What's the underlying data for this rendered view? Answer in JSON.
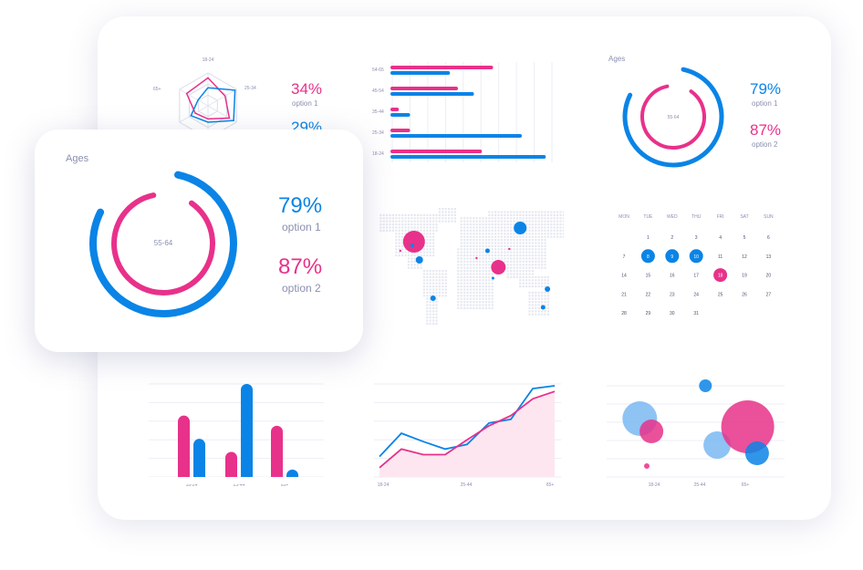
{
  "colors": {
    "blue": "#0a84e6",
    "pink": "#e8318a",
    "lightblue": "#7ab8f2",
    "grid": "#eceef5",
    "text": "#8a8fb0"
  },
  "floating_card": {
    "title": "Ages",
    "center_label": "55-64",
    "stat1": {
      "value": "79%",
      "label": "option 1"
    },
    "stat2": {
      "value": "87%",
      "label": "option 2"
    }
  },
  "chart_data": [
    {
      "type": "radar",
      "axes": [
        "18-24",
        "25-34",
        "65+"
      ],
      "stats": [
        {
          "value": "34%",
          "label": "option 1"
        },
        {
          "value": "29%",
          "label": ""
        }
      ]
    },
    {
      "type": "bar",
      "orientation": "horizontal",
      "categories": [
        "54-65",
        "45-54",
        "35-44",
        "25-34",
        "18-24"
      ],
      "series": [
        {
          "values": [
            62,
            40,
            3,
            10,
            55
          ]
        },
        {
          "values": [
            35,
            50,
            10,
            80,
            95
          ]
        }
      ],
      "ylim": [
        0,
        100
      ]
    },
    {
      "type": "donut",
      "title": "Ages",
      "center_label": "55-64",
      "stats": [
        {
          "value": "79%",
          "label": "option 1"
        },
        {
          "value": "87%",
          "label": "option 2"
        }
      ]
    },
    {
      "type": "map_bubbles",
      "points": [
        {
          "lon": -95,
          "lat": 40,
          "size": 12,
          "color": "pink"
        },
        {
          "lon": -98,
          "lat": 36,
          "size": 2,
          "color": "blue"
        },
        {
          "lon": -85,
          "lat": 20,
          "size": 4,
          "color": "blue"
        },
        {
          "lon": -60,
          "lat": -22,
          "size": 3,
          "color": "blue"
        },
        {
          "lon": -120,
          "lat": 30,
          "size": 1.2,
          "color": "pink"
        },
        {
          "lon": 100,
          "lat": 55,
          "size": 7,
          "color": "blue"
        },
        {
          "lon": 40,
          "lat": 30,
          "size": 2.5,
          "color": "blue"
        },
        {
          "lon": 60,
          "lat": 12,
          "size": 8,
          "color": "pink"
        },
        {
          "lon": 80,
          "lat": 32,
          "size": 1.2,
          "color": "pink"
        },
        {
          "lon": 20,
          "lat": 22,
          "size": 1.2,
          "color": "pink"
        },
        {
          "lon": 50,
          "lat": 0,
          "size": 1.5,
          "color": "blue"
        },
        {
          "lon": 150,
          "lat": -12,
          "size": 3,
          "color": "blue"
        },
        {
          "lon": 142,
          "lat": -32,
          "size": 2.5,
          "color": "blue"
        }
      ]
    },
    {
      "type": "calendar",
      "weekdays": [
        "MON",
        "TUE",
        "WED",
        "THU",
        "FRI",
        "SAT",
        "SUN"
      ],
      "rows": [
        [
          "",
          "1",
          "2",
          "3",
          "4",
          "5",
          "6"
        ],
        [
          "7",
          "8",
          "9",
          "10",
          "11",
          "12",
          "13"
        ],
        [
          "14",
          "15",
          "16",
          "17",
          "18",
          "19",
          "20"
        ],
        [
          "21",
          "22",
          "23",
          "24",
          "25",
          "26",
          "27"
        ],
        [
          "28",
          "29",
          "30",
          "31",
          "",
          "",
          ""
        ]
      ],
      "highlighted_blue": [
        "8",
        "9",
        "10"
      ],
      "highlighted_pink": [
        "18"
      ]
    },
    {
      "type": "bar",
      "categories": [
        "18-24",
        "25-44",
        "65+"
      ],
      "series": [
        {
          "values": [
            66,
            27,
            55
          ]
        },
        {
          "values": [
            41,
            100,
            8
          ]
        }
      ],
      "ylim": [
        0,
        100
      ]
    },
    {
      "type": "line",
      "categories": [
        "18-24",
        "25-44",
        "65+"
      ],
      "x": [
        0,
        1,
        2,
        3,
        4,
        5,
        6,
        7,
        8
      ],
      "series": [
        {
          "values": [
            22,
            47,
            38,
            30,
            35,
            58,
            62,
            95,
            98
          ]
        },
        {
          "values": [
            10,
            30,
            24,
            24,
            40,
            55,
            66,
            84,
            92
          ]
        }
      ],
      "ylim": [
        0,
        100
      ]
    },
    {
      "type": "bubble",
      "categories": [
        "18-24",
        "25-44",
        "65+"
      ],
      "points": [
        {
          "x": 1.1,
          "y": 64,
          "r": 19,
          "color": "lightblue"
        },
        {
          "x": 1.6,
          "y": 50,
          "r": 13,
          "color": "pink"
        },
        {
          "x": 3.9,
          "y": 100,
          "r": 7,
          "color": "blue"
        },
        {
          "x": 4.4,
          "y": 35,
          "r": 15,
          "color": "lightblue"
        },
        {
          "x": 5.7,
          "y": 55,
          "r": 29,
          "color": "pink"
        },
        {
          "x": 6.1,
          "y": 26,
          "r": 13,
          "color": "blue"
        },
        {
          "x": 1.4,
          "y": 12,
          "r": 3,
          "color": "pink"
        }
      ],
      "ylim": [
        0,
        100
      ]
    }
  ]
}
